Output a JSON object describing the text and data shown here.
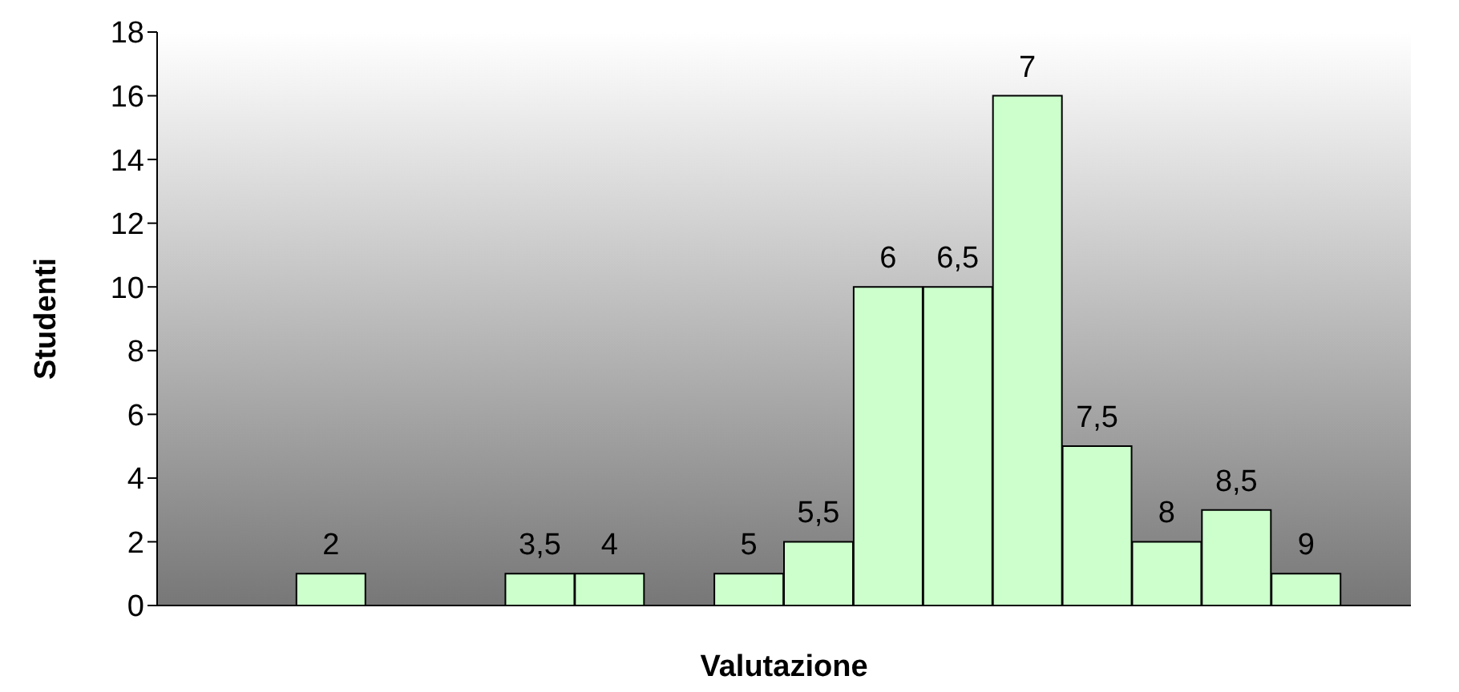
{
  "chart_data": {
    "type": "bar",
    "xlabel": "Valutazione",
    "ylabel": "Studenti",
    "categories": [
      null,
      null,
      "2",
      null,
      null,
      "3,5",
      "4",
      null,
      "5",
      "5,5",
      "6",
      "6,5",
      "7",
      "7,5",
      "8",
      "8,5",
      "9",
      null
    ],
    "values": [
      null,
      null,
      1,
      null,
      null,
      1,
      1,
      null,
      1,
      2,
      10,
      10,
      16,
      5,
      2,
      3,
      1,
      null
    ],
    "color": "#ccffcc",
    "ylim": [
      0,
      18
    ],
    "yticks": [
      0,
      2,
      4,
      6,
      8,
      10,
      12,
      14,
      16,
      18
    ],
    "grid": false,
    "tick_labels": "y"
  }
}
